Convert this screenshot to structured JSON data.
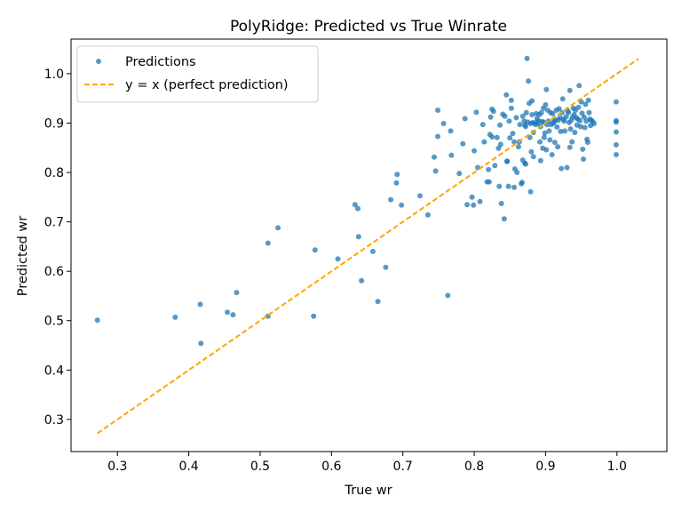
{
  "chart_data": {
    "type": "scatter",
    "title": "PolyRidge: Predicted vs True Winrate",
    "xlabel": "True wr",
    "ylabel": "Predicted wr",
    "xlim": [
      0.235,
      1.07
    ],
    "ylim": [
      0.235,
      1.07
    ],
    "xticks": [
      0.3,
      0.4,
      0.5,
      0.6,
      0.7,
      0.8,
      0.9,
      1.0
    ],
    "xtick_labels": [
      "0.3",
      "0.4",
      "0.5",
      "0.6",
      "0.7",
      "0.8",
      "0.9",
      "1.0"
    ],
    "yticks": [
      0.3,
      0.4,
      0.5,
      0.6,
      0.7,
      0.8,
      0.9,
      1.0
    ],
    "ytick_labels": [
      "0.3",
      "0.4",
      "0.5",
      "0.6",
      "0.7",
      "0.8",
      "0.9",
      "1.0"
    ],
    "grid": false,
    "legend_position": "top-left",
    "colors": {
      "points": "#1f77b4",
      "reference": "#ffa500"
    },
    "series": [
      {
        "name": "Predictions",
        "kind": "scatter",
        "points": [
          [
            0.272,
            0.501
          ],
          [
            0.381,
            0.507
          ],
          [
            0.416,
            0.533
          ],
          [
            0.417,
            0.454
          ],
          [
            0.454,
            0.517
          ],
          [
            0.462,
            0.512
          ],
          [
            0.467,
            0.557
          ],
          [
            0.511,
            0.509
          ],
          [
            0.511,
            0.657
          ],
          [
            0.525,
            0.688
          ],
          [
            0.575,
            0.509
          ],
          [
            0.577,
            0.643
          ],
          [
            0.609,
            0.625
          ],
          [
            0.633,
            0.735
          ],
          [
            0.637,
            0.727
          ],
          [
            0.638,
            0.67
          ],
          [
            0.642,
            0.581
          ],
          [
            0.658,
            0.64
          ],
          [
            0.665,
            0.539
          ],
          [
            0.676,
            0.608
          ],
          [
            0.683,
            0.745
          ],
          [
            0.691,
            0.779
          ],
          [
            0.692,
            0.796
          ],
          [
            0.698,
            0.734
          ],
          [
            0.724,
            0.753
          ],
          [
            0.735,
            0.714
          ],
          [
            0.744,
            0.831
          ],
          [
            0.746,
            0.803
          ],
          [
            0.749,
            0.926
          ],
          [
            0.749,
            0.873
          ],
          [
            0.757,
            0.899
          ],
          [
            0.763,
            0.551
          ],
          [
            0.767,
            0.884
          ],
          [
            0.768,
            0.835
          ],
          [
            0.779,
            0.798
          ],
          [
            0.784,
            0.858
          ],
          [
            0.787,
            0.909
          ],
          [
            0.79,
            0.735
          ],
          [
            0.797,
            0.75
          ],
          [
            0.799,
            0.734
          ],
          [
            0.8,
            0.844
          ],
          [
            0.803,
            0.922
          ],
          [
            0.805,
            0.81
          ],
          [
            0.808,
            0.741
          ],
          [
            0.812,
            0.897
          ],
          [
            0.814,
            0.862
          ],
          [
            0.818,
            0.781
          ],
          [
            0.82,
            0.806
          ],
          [
            0.821,
            0.781
          ],
          [
            0.822,
            0.877
          ],
          [
            0.823,
            0.912
          ],
          [
            0.825,
            0.928
          ],
          [
            0.827,
            0.924
          ],
          [
            0.829,
            0.814
          ],
          [
            0.832,
            0.871
          ],
          [
            0.834,
            0.849
          ],
          [
            0.835,
            0.772
          ],
          [
            0.836,
            0.896
          ],
          [
            0.837,
            0.857
          ],
          [
            0.838,
            0.737
          ],
          [
            0.84,
            0.918
          ],
          [
            0.842,
            0.706
          ],
          [
            0.843,
            0.914
          ],
          [
            0.845,
            0.957
          ],
          [
            0.846,
            0.822
          ],
          [
            0.848,
            0.772
          ],
          [
            0.849,
            0.904
          ],
          [
            0.85,
            0.87
          ],
          [
            0.852,
            0.93
          ],
          [
            0.852,
            0.946
          ],
          [
            0.854,
            0.879
          ],
          [
            0.856,
            0.862
          ],
          [
            0.857,
            0.807
          ],
          [
            0.859,
            0.911
          ],
          [
            0.86,
            0.8
          ],
          [
            0.862,
            0.852
          ],
          [
            0.863,
            0.862
          ],
          [
            0.864,
            0.897
          ],
          [
            0.866,
            0.777
          ],
          [
            0.867,
            0.78
          ],
          [
            0.868,
            0.914
          ],
          [
            0.868,
            0.825
          ],
          [
            0.87,
            0.904
          ],
          [
            0.871,
            0.896
          ],
          [
            0.872,
            0.893
          ],
          [
            0.872,
            0.817
          ],
          [
            0.873,
            0.921
          ],
          [
            0.874,
            1.031
          ],
          [
            0.875,
            0.902
          ],
          [
            0.876,
            0.985
          ],
          [
            0.877,
            0.94
          ],
          [
            0.878,
            0.871
          ],
          [
            0.879,
            0.761
          ],
          [
            0.879,
            0.899
          ],
          [
            0.88,
            0.842
          ],
          [
            0.881,
            0.917
          ],
          [
            0.881,
            0.945
          ],
          [
            0.882,
            0.901
          ],
          [
            0.883,
            0.881
          ],
          [
            0.883,
            0.832
          ],
          [
            0.885,
            0.9
          ],
          [
            0.886,
            0.897
          ],
          [
            0.887,
            0.919
          ],
          [
            0.888,
            0.909
          ],
          [
            0.889,
            0.9
          ],
          [
            0.89,
            0.905
          ],
          [
            0.891,
            0.917
          ],
          [
            0.892,
            0.862
          ],
          [
            0.893,
            0.893
          ],
          [
            0.894,
            0.921
          ],
          [
            0.895,
            0.903
          ],
          [
            0.896,
            0.849
          ],
          [
            0.897,
            0.93
          ],
          [
            0.897,
            0.902
          ],
          [
            0.898,
            0.871
          ],
          [
            0.899,
            0.88
          ],
          [
            0.9,
            0.937
          ],
          [
            0.901,
            0.968
          ],
          [
            0.902,
            0.897
          ],
          [
            0.903,
            0.926
          ],
          [
            0.904,
            0.904
          ],
          [
            0.905,
            0.884
          ],
          [
            0.906,
            0.866
          ],
          [
            0.907,
            0.921
          ],
          [
            0.908,
            0.897
          ],
          [
            0.909,
            0.836
          ],
          [
            0.91,
            0.919
          ],
          [
            0.911,
            0.9
          ],
          [
            0.912,
            0.903
          ],
          [
            0.913,
            0.861
          ],
          [
            0.914,
            0.906
          ],
          [
            0.915,
            0.926
          ],
          [
            0.916,
            0.892
          ],
          [
            0.917,
            0.852
          ],
          [
            0.918,
            0.906
          ],
          [
            0.919,
            0.929
          ],
          [
            0.92,
            0.911
          ],
          [
            0.921,
            0.883
          ],
          [
            0.922,
            0.808
          ],
          [
            0.923,
            0.921
          ],
          [
            0.924,
            0.949
          ],
          [
            0.925,
            0.908
          ],
          [
            0.926,
            0.904
          ],
          [
            0.927,
            0.884
          ],
          [
            0.929,
            0.913
          ],
          [
            0.93,
            0.81
          ],
          [
            0.931,
            0.925
          ],
          [
            0.932,
            0.921
          ],
          [
            0.933,
            0.901
          ],
          [
            0.934,
            0.966
          ],
          [
            0.935,
            0.888
          ],
          [
            0.936,
            0.906
          ],
          [
            0.937,
            0.862
          ],
          [
            0.938,
            0.912
          ],
          [
            0.939,
            0.93
          ],
          [
            0.94,
            0.917
          ],
          [
            0.941,
            0.881
          ],
          [
            0.942,
            0.926
          ],
          [
            0.943,
            0.911
          ],
          [
            0.944,
            0.896
          ],
          [
            0.945,
            0.908
          ],
          [
            0.946,
            0.932
          ],
          [
            0.947,
            0.976
          ],
          [
            0.948,
            0.905
          ],
          [
            0.949,
            0.893
          ],
          [
            0.95,
            0.943
          ],
          [
            0.951,
            0.92
          ],
          [
            0.952,
            0.847
          ],
          [
            0.953,
            0.827
          ],
          [
            0.954,
            0.912
          ],
          [
            0.955,
            0.891
          ],
          [
            0.956,
            0.938
          ],
          [
            0.957,
            0.904
          ],
          [
            0.958,
            0.867
          ],
          [
            0.959,
            0.861
          ],
          [
            0.96,
            0.946
          ],
          [
            0.961,
            0.921
          ],
          [
            0.962,
            0.908
          ],
          [
            0.963,
            0.895
          ],
          [
            0.964,
            0.906
          ],
          [
            0.966,
            0.903
          ],
          [
            0.968,
            0.899
          ],
          [
            0.999,
            0.943
          ],
          [
            0.999,
            0.905
          ],
          [
            0.999,
            0.902
          ],
          [
            0.999,
            0.882
          ],
          [
            0.999,
            0.856
          ],
          [
            0.999,
            0.836
          ],
          [
            0.893,
            0.824
          ],
          [
            0.871,
            0.819
          ],
          [
            0.846,
            0.823
          ],
          [
            0.825,
            0.872
          ],
          [
            0.856,
            0.77
          ],
          [
            0.901,
            0.846
          ],
          [
            0.934,
            0.851
          ]
        ]
      },
      {
        "name": "y = x (perfect prediction)",
        "kind": "line",
        "x": [
          0.272,
          1.03
        ],
        "y": [
          0.272,
          1.03
        ]
      }
    ]
  }
}
